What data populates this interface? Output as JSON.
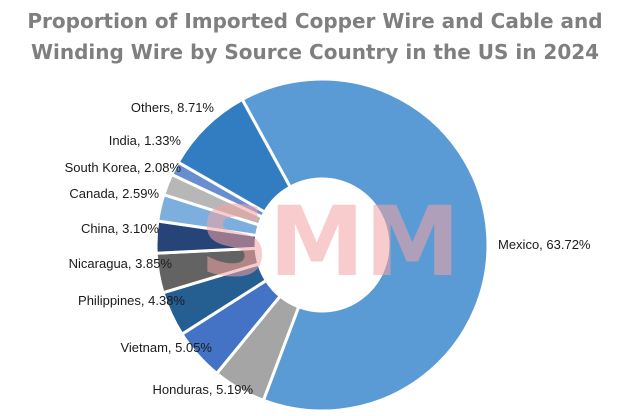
{
  "chart_data": {
    "type": "pie",
    "style": "donut",
    "title_line1": "Proportion of Imported Copper Wire and Cable and",
    "title_line2": "Winding Wire by Source Country in the US in 2024",
    "watermark_text": "SMM",
    "watermark_color": "#f4a3a3",
    "slices": [
      {
        "label": "Mexico",
        "value": 63.72,
        "text": "Mexico, 63.72%",
        "color": "#5b9bd5"
      },
      {
        "label": "Honduras",
        "value": 5.19,
        "text": "Honduras, 5.19%",
        "color": "#a5a5a5"
      },
      {
        "label": "Vietnam",
        "value": 5.05,
        "text": "Vietnam, 5.05%",
        "color": "#4472c4"
      },
      {
        "label": "Philippines",
        "value": 4.38,
        "text": "Philippines, 4.38%",
        "color": "#255e91"
      },
      {
        "label": "Nicaragua",
        "value": 3.85,
        "text": "Nicaragua, 3.85%",
        "color": "#636363"
      },
      {
        "label": "China",
        "value": 3.1,
        "text": "China, 3.10%",
        "color": "#264478"
      },
      {
        "label": "Canada",
        "value": 2.59,
        "text": "Canada, 2.59%",
        "color": "#7cafdd"
      },
      {
        "label": "South Korea",
        "value": 2.08,
        "text": "South Korea, 2.08%",
        "color": "#b7b7b7"
      },
      {
        "label": "India",
        "value": 1.33,
        "text": "India, 1.33%",
        "color": "#698ed0"
      },
      {
        "label": "Others",
        "value": 8.71,
        "text": "Others, 8.71%",
        "color": "#327dc2"
      }
    ]
  }
}
